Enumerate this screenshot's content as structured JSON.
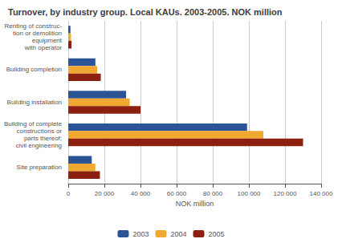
{
  "chart_data": {
    "type": "bar",
    "orientation": "horizontal",
    "title": "Turnover, by industry group. Local KAUs. 2003-2005. NOK million",
    "categories": [
      "Renting of construc-\ntion or demolition\nequipment\nwith operator",
      "Building completion",
      "Building installation",
      "Building of complete\nconstructions or\nparts thereof;\ncivil engineering",
      "Site preparation"
    ],
    "series": [
      {
        "name": "2003",
        "color": "#2a5496",
        "values": [
          1200,
          15000,
          32000,
          99000,
          13000
        ]
      },
      {
        "name": "2004",
        "color": "#f0a830",
        "values": [
          1500,
          16000,
          34000,
          108000,
          15000
        ]
      },
      {
        "name": "2005",
        "color": "#8b2010",
        "values": [
          1800,
          18000,
          40000,
          130000,
          17500
        ]
      }
    ],
    "xlabel": "NOK million",
    "xlim": [
      0,
      140000
    ],
    "xticks": [
      0,
      {
        "value": 20000,
        "label": "20 000"
      },
      {
        "value": 40000,
        "label": "40 000"
      },
      {
        "value": 60000,
        "label": "60 000"
      },
      {
        "value": 80000,
        "label": "80 000"
      },
      {
        "value": 100000,
        "label": "100 000"
      },
      {
        "value": 120000,
        "label": "120 000"
      },
      {
        "value": 140000,
        "label": "140 000"
      }
    ],
    "grid": true,
    "legend": "bottom"
  }
}
